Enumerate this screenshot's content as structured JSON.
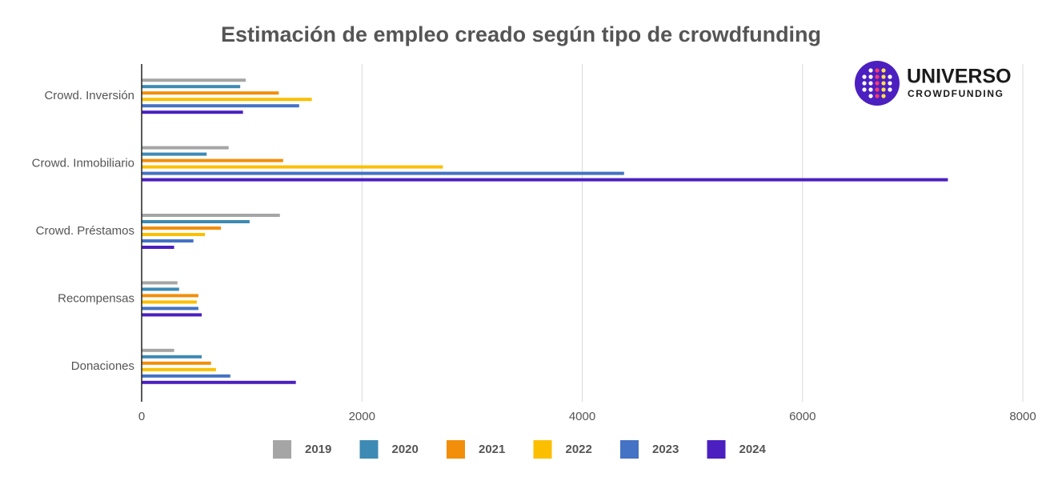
{
  "chart_data": {
    "type": "hbar",
    "title": "Estimación de empleo creado según tipo de crowdfunding",
    "categories": [
      "Crowd. Inversión",
      "Crowd. Inmobiliario",
      "Crowd. Préstamos",
      "Recompensas",
      "Donaciones"
    ],
    "series": [
      {
        "name": "2019",
        "color": "#a5a5a5",
        "values": [
          945,
          790,
          1255,
          325,
          295
        ]
      },
      {
        "name": "2020",
        "color": "#3d8ab4",
        "values": [
          895,
          590,
          980,
          340,
          545
        ]
      },
      {
        "name": "2021",
        "color": "#f28e0a",
        "values": [
          1245,
          1285,
          720,
          515,
          630
        ]
      },
      {
        "name": "2022",
        "color": "#fbbf00",
        "values": [
          1545,
          2735,
          575,
          500,
          675
        ]
      },
      {
        "name": "2023",
        "color": "#4472c4",
        "values": [
          1430,
          4380,
          470,
          515,
          805
        ]
      },
      {
        "name": "2024",
        "color": "#4b1fc0",
        "values": [
          920,
          7320,
          295,
          545,
          1400
        ]
      }
    ],
    "xlim": [
      0,
      8000
    ],
    "xticks": [
      0,
      2000,
      4000,
      6000,
      8000
    ],
    "grid": true
  },
  "logo": {
    "title": "UNIVERSO",
    "subtitle": "CROWDFUNDING"
  }
}
